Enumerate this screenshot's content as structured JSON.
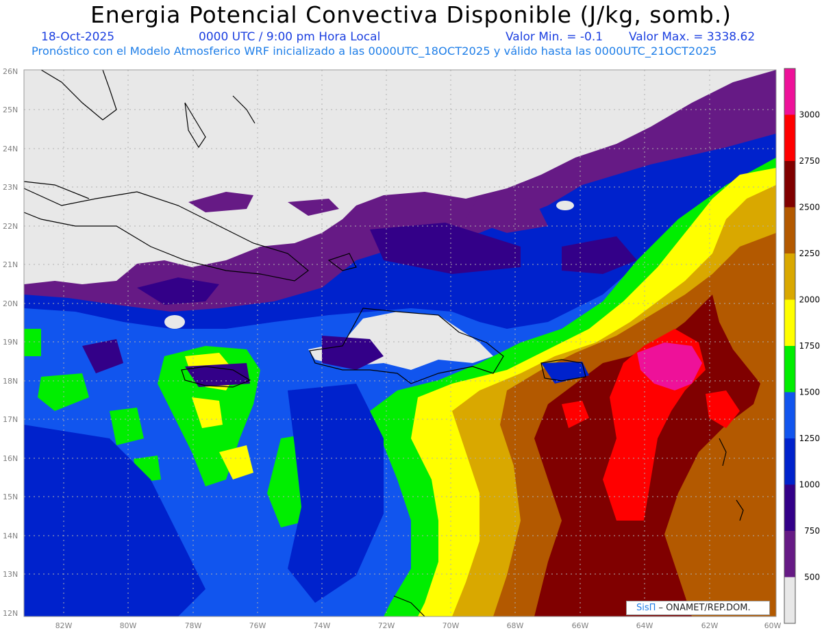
{
  "header": {
    "title": "Energia Potencial Convectiva Disponible (J/kg, somb.)",
    "date": "18-Oct-2025",
    "time": "0000 UTC / 9:00 pm Hora Local",
    "valmin": "Valor Min. = -0.1",
    "valmax": "Valor Max. = 3338.62",
    "forecast": "Pronóstico con el Modelo Atmosferico WRF inicializado a las 0000UTC_18OCT2025 y válido hasta las  0000UTC_21OCT2025"
  },
  "map": {
    "lat_labels": [
      "26N",
      "25N",
      "24N",
      "23N",
      "22N",
      "21N",
      "20N",
      "19N",
      "18N",
      "17N",
      "16N",
      "15N",
      "14N",
      "13N",
      "12N"
    ],
    "lon_labels": [
      "82W",
      "80W",
      "78W",
      "76W",
      "74W",
      "72W",
      "70W",
      "68W",
      "66W",
      "64W",
      "62W",
      "60W"
    ],
    "lat_range": [
      12,
      26
    ],
    "lon_range": [
      -83,
      -60
    ]
  },
  "colorbar": {
    "levels": [
      "3000",
      "2750",
      "2500",
      "2250",
      "2000",
      "1750",
      "1500",
      "1250",
      "1000",
      "750",
      "500"
    ],
    "colors": [
      "#ee1199",
      "#ff0000",
      "#800000",
      "#b35900",
      "#d9a800",
      "#ffff00",
      "#00ee00",
      "#1155ee",
      "#0022cc",
      "#330088",
      "#661a85",
      "#e8e8e8"
    ]
  },
  "logo": {
    "sis": "SisΠ",
    "org": " – ONAMET/REP.DOM."
  }
}
